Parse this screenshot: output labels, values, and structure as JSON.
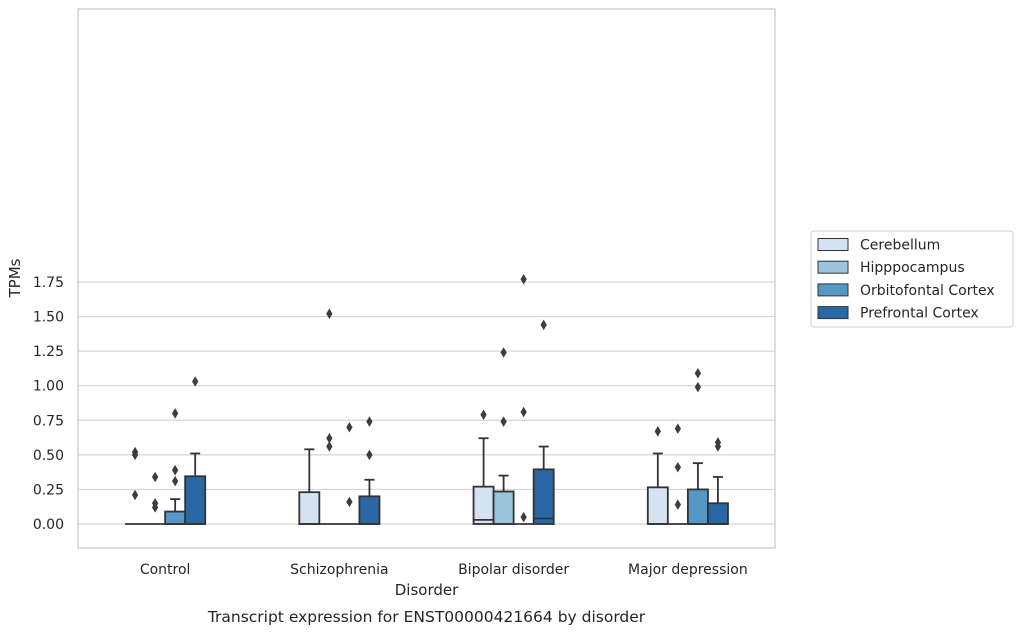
{
  "chart_data": {
    "type": "box",
    "title": "",
    "caption": "Transcript expression for ENST00000421664 by disorder",
    "xlabel": "Disorder",
    "ylabel": "TPMs",
    "ylim": [
      -0.085,
      1.86
    ],
    "yticks": [
      "0.00",
      "0.25",
      "0.50",
      "0.75",
      "1.00",
      "1.25",
      "1.50",
      "1.75"
    ],
    "grid": "horizontal",
    "legend_position": "outside-right",
    "categories": [
      "Control",
      "Schizophrenia",
      "Bipolar disorder",
      "Major depression"
    ],
    "series": [
      {
        "name": "Cerebellum",
        "color": "#d4e2f1",
        "boxes": [
          {
            "whisker_low": 0,
            "q1": 0,
            "median": 0,
            "q3": 0,
            "whisker_high": 0,
            "outliers": [
              0.21,
              0.5,
              0.52
            ]
          },
          {
            "whisker_low": 0,
            "q1": 0,
            "median": 0,
            "q3": 0.23,
            "whisker_high": 0.54,
            "outliers": []
          },
          {
            "whisker_low": 0,
            "q1": 0,
            "median": 0.03,
            "q3": 0.27,
            "whisker_high": 0.62,
            "outliers": [
              0.79
            ]
          },
          {
            "whisker_low": 0,
            "q1": 0,
            "median": 0,
            "q3": 0.265,
            "whisker_high": 0.51,
            "outliers": [
              0.67
            ]
          }
        ]
      },
      {
        "name": "Hipppocampus",
        "color": "#9bc5de",
        "boxes": [
          {
            "whisker_low": 0,
            "q1": 0,
            "median": 0,
            "q3": 0,
            "whisker_high": 0,
            "outliers": [
              0.12,
              0.15,
              0.34
            ]
          },
          {
            "whisker_low": 0,
            "q1": 0,
            "median": 0,
            "q3": 0,
            "whisker_high": 0,
            "outliers": [
              0.56,
              0.62,
              1.52
            ]
          },
          {
            "whisker_low": 0,
            "q1": 0,
            "median": 0,
            "q3": 0.235,
            "whisker_high": 0.35,
            "outliers": [
              0.74,
              1.24
            ]
          },
          {
            "whisker_low": 0,
            "q1": 0,
            "median": 0,
            "q3": 0,
            "whisker_high": 0,
            "outliers": [
              0.14,
              0.41,
              0.69
            ]
          }
        ]
      },
      {
        "name": "Orbitofontal Cortex",
        "color": "#5598c6",
        "boxes": [
          {
            "whisker_low": 0,
            "q1": 0,
            "median": 0,
            "q3": 0.09,
            "whisker_high": 0.18,
            "outliers": [
              0.31,
              0.39,
              0.8
            ]
          },
          {
            "whisker_low": 0,
            "q1": 0,
            "median": 0,
            "q3": 0,
            "whisker_high": 0,
            "outliers": [
              0.16,
              0.7
            ]
          },
          {
            "whisker_low": 0,
            "q1": 0,
            "median": 0,
            "q3": 0,
            "whisker_high": 0,
            "outliers": [
              0.05,
              0.81,
              1.77
            ]
          },
          {
            "whisker_low": 0,
            "q1": 0,
            "median": 0,
            "q3": 0.25,
            "whisker_high": 0.44,
            "outliers": [
              0.99,
              1.09
            ]
          }
        ]
      },
      {
        "name": "Prefrontal Cortex",
        "color": "#2a67a5",
        "boxes": [
          {
            "whisker_low": 0,
            "q1": 0,
            "median": 0,
            "q3": 0.345,
            "whisker_high": 0.51,
            "outliers": [
              1.03
            ]
          },
          {
            "whisker_low": 0,
            "q1": 0,
            "median": 0,
            "q3": 0.2,
            "whisker_high": 0.32,
            "outliers": [
              0.5,
              0.74
            ]
          },
          {
            "whisker_low": 0,
            "q1": 0,
            "median": 0.04,
            "q3": 0.395,
            "whisker_high": 0.56,
            "outliers": [
              1.44
            ]
          },
          {
            "whisker_low": 0,
            "q1": 0,
            "median": 0,
            "q3": 0.15,
            "whisker_high": 0.34,
            "outliers": [
              0.56,
              0.59
            ]
          }
        ]
      }
    ]
  }
}
